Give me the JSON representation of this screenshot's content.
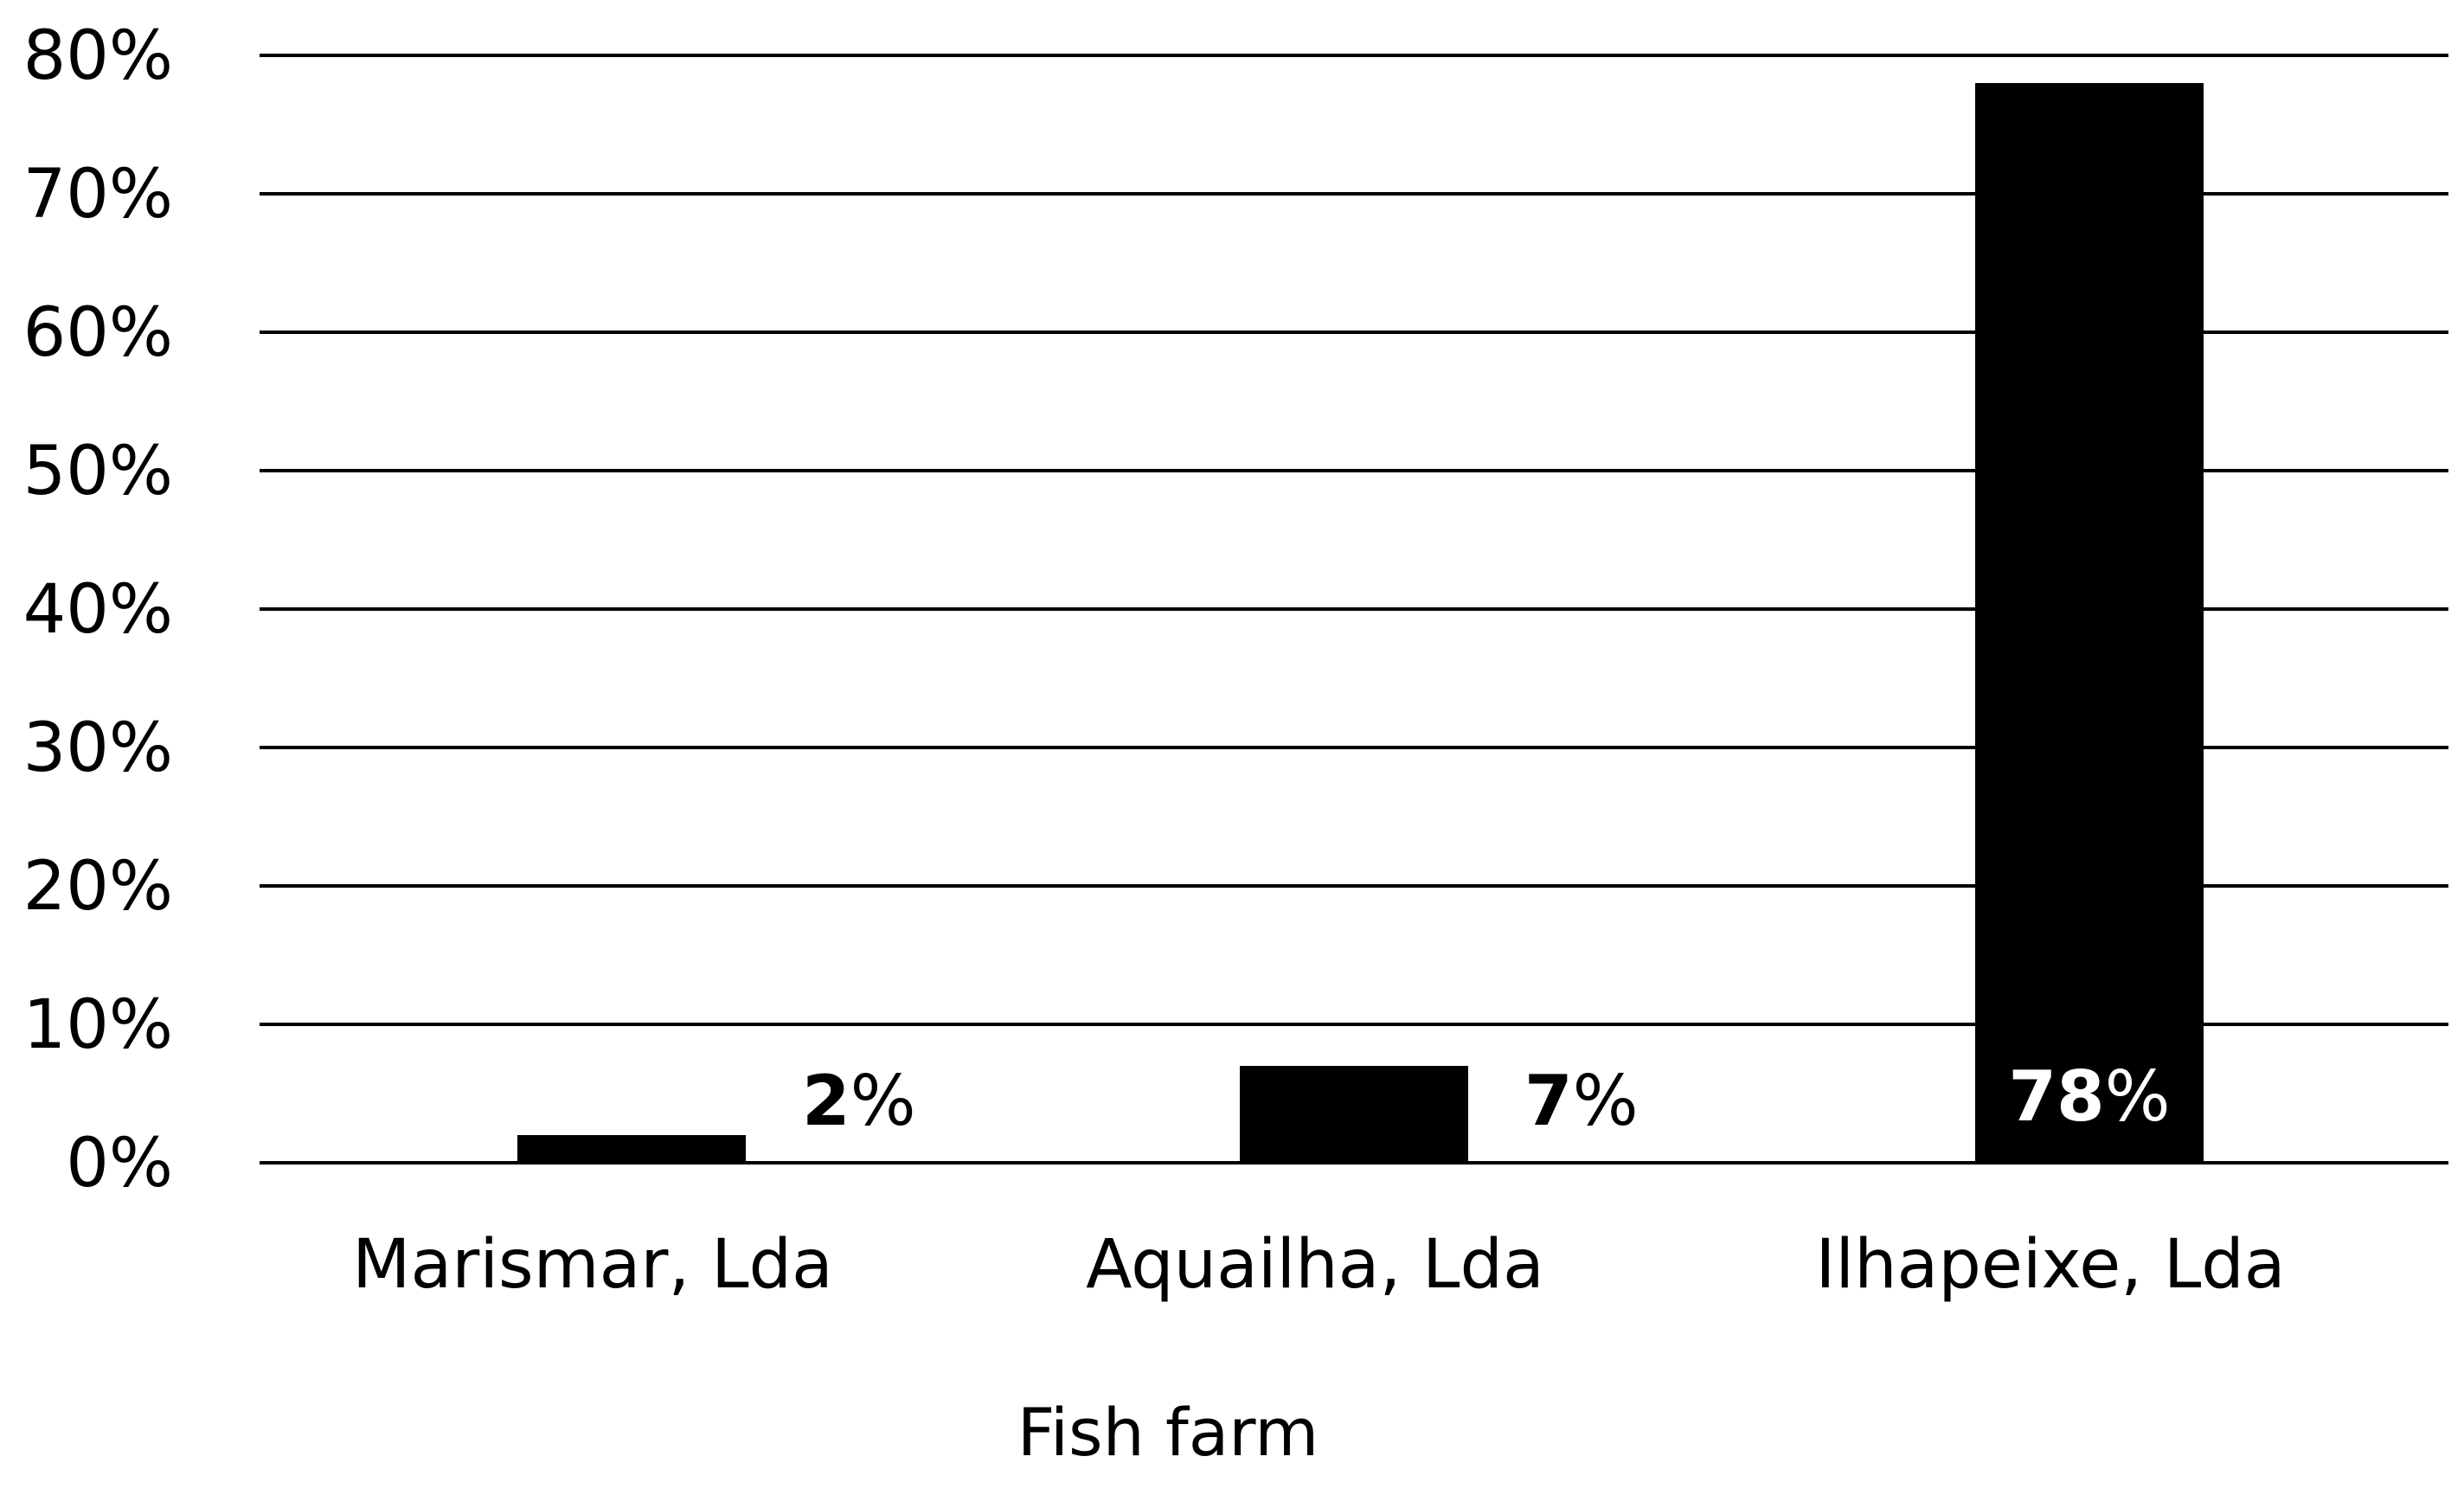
{
  "chart_data": {
    "type": "bar",
    "title": "",
    "xlabel": "Fish farm",
    "ylabel": "",
    "categories": [
      "Marismar, Lda",
      "Aquailha, Lda",
      "Ilhapeixe, Lda"
    ],
    "values": [
      2,
      7,
      78
    ],
    "value_labels": [
      {
        "number": "2",
        "unit": "%"
      },
      {
        "number": "7",
        "unit": "%"
      },
      {
        "number": "78",
        "unit": "%"
      }
    ],
    "ylim": [
      0,
      80
    ],
    "yticks": [
      0,
      10,
      20,
      30,
      40,
      50,
      60,
      70,
      80
    ],
    "ytick_labels": [
      "0%",
      "10%",
      "20%",
      "30%",
      "40%",
      "50%",
      "60%",
      "70%",
      "80%"
    ],
    "grid": true,
    "legend": "none",
    "colors": {
      "bar": "#000000",
      "gridline": "#000000",
      "text": "#000000",
      "label_inside_bar": "#ffffff"
    }
  }
}
